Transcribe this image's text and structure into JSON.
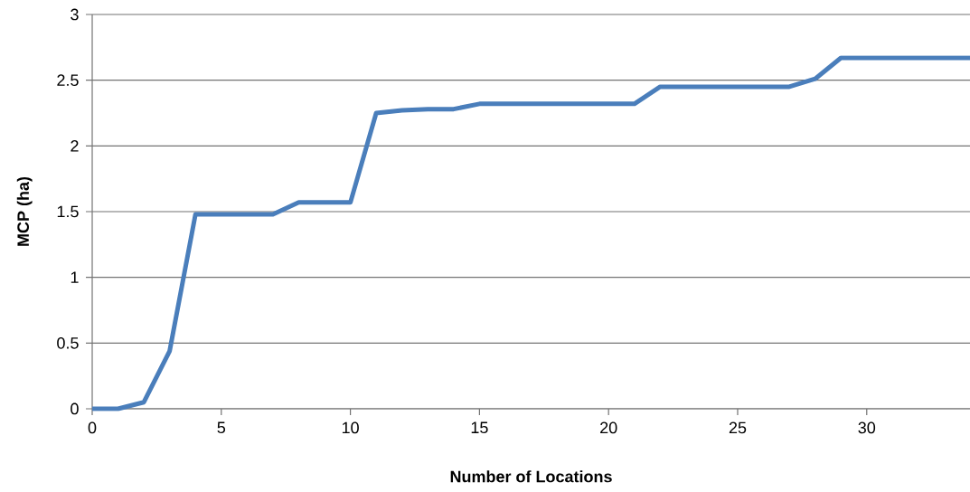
{
  "chart_data": {
    "type": "line",
    "xlabel": "Number of Locations",
    "ylabel": "MCP (ha)",
    "x": [
      0,
      1,
      2,
      3,
      4,
      5,
      6,
      7,
      8,
      9,
      10,
      11,
      12,
      13,
      14,
      15,
      16,
      17,
      18,
      19,
      20,
      21,
      22,
      23,
      24,
      25,
      26,
      27,
      28,
      29,
      30,
      31,
      32,
      33,
      34
    ],
    "series": [
      {
        "color": "#4a7ebb",
        "values": [
          0,
          0,
          0.05,
          0.44,
          1.48,
          1.48,
          1.48,
          1.48,
          1.57,
          1.57,
          1.57,
          2.25,
          2.27,
          2.28,
          2.28,
          2.32,
          2.32,
          2.32,
          2.32,
          2.32,
          2.32,
          2.32,
          2.45,
          2.45,
          2.45,
          2.45,
          2.45,
          2.45,
          2.51,
          2.67,
          2.67,
          2.67,
          2.67,
          2.67,
          2.67
        ]
      }
    ],
    "xlim": [
      0,
      34
    ],
    "xticks": [
      0,
      5,
      10,
      15,
      20,
      25,
      30
    ],
    "ylim": [
      0,
      3
    ],
    "yticks": [
      0,
      0.5,
      1,
      1.5,
      2,
      2.5,
      3
    ],
    "grid": "y"
  }
}
